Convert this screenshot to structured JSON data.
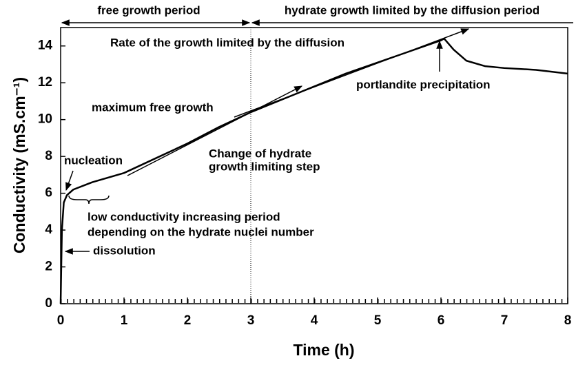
{
  "chart_data": {
    "type": "line",
    "xlabel": "Time (h)",
    "ylabel": "Conductivity (mS.cm⁻¹)",
    "x": [
      0,
      0.02,
      0.05,
      0.1,
      0.2,
      0.5,
      1.0,
      1.5,
      2.0,
      2.5,
      3.0,
      3.5,
      4.0,
      4.5,
      5.0,
      5.5,
      6.0,
      6.05,
      6.2,
      6.4,
      6.7,
      7.0,
      7.5,
      8.0
    ],
    "values": [
      0,
      4,
      5.5,
      5.9,
      6.2,
      6.6,
      7.1,
      7.9,
      8.7,
      9.6,
      10.4,
      11.1,
      11.8,
      12.5,
      13.1,
      13.7,
      14.3,
      14.4,
      13.8,
      13.2,
      12.9,
      12.8,
      12.7,
      12.5
    ],
    "color": "#000000",
    "xlim": [
      0,
      8
    ],
    "xticks": [
      0,
      1,
      2,
      3,
      4,
      5,
      6,
      7,
      8
    ],
    "ylim": [
      0,
      15
    ],
    "yticks": [
      0,
      2,
      4,
      6,
      8,
      10,
      12,
      14
    ],
    "periods": [
      "free growth period",
      "hydrate growth limited by the diffusion period"
    ],
    "annotations": [
      "Rate of the growth limited by the diffusion",
      "maximum free growth",
      "portlandite precipitation",
      "Change of hydrate",
      "growth limiting step",
      "nucleation",
      "low conductivity increasing period",
      "depending on the hydrate nuclei number",
      "dissolution"
    ]
  }
}
